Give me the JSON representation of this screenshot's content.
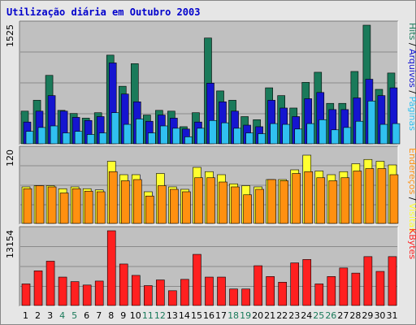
{
  "chart_data": {
    "title": "Utilização diária em Outubro 2003",
    "days": [
      "1",
      "2",
      "3",
      "4",
      "5",
      "6",
      "7",
      "8",
      "9",
      "10",
      "11",
      "12",
      "13",
      "14",
      "15",
      "16",
      "17",
      "18",
      "19",
      "20",
      "21",
      "22",
      "23",
      "24",
      "25",
      "26",
      "27",
      "28",
      "29",
      "30",
      "31"
    ],
    "weekend_days": [
      "4",
      "5",
      "11",
      "12",
      "18",
      "19",
      "25",
      "26"
    ],
    "colors": {
      "hits": "#1a7a5a",
      "files": "#1515d0",
      "pages": "#30c0f0",
      "visits": "#ffff30",
      "hosts": "#ff9010",
      "kbytes": "#ff2020",
      "weekday_label": "#000000",
      "weekend_label": "#1a7a5a",
      "panel_bg": "#c0c0c0"
    },
    "panels": [
      {
        "type": "bar",
        "ymax": 1525,
        "ymax_label": "1525",
        "legend": [
          {
            "text": "Hits",
            "color": "#1a7a5a"
          },
          {
            "text": " / ",
            "color": "#000000"
          },
          {
            "text": "Arquivos",
            "color": "#1515d0"
          },
          {
            "text": " / ",
            "color": "#000000"
          },
          {
            "text": "Páginas",
            "color": "#30c0f0"
          }
        ],
        "series": [
          {
            "name": "Hits",
            "color": "#1a7a5a",
            "values": [
              420,
              560,
              880,
              430,
              390,
              330,
              400,
              1140,
              740,
              1030,
              370,
              430,
              420,
              220,
              400,
              1360,
              680,
              560,
              350,
              310,
              720,
              620,
              460,
              790,
              920,
              520,
              520,
              930,
              1525,
              700,
              910
            ]
          },
          {
            "name": "Arquivos",
            "color": "#1515d0",
            "values": [
              280,
              420,
              620,
              420,
              340,
              300,
              350,
              1040,
              640,
              540,
              290,
              370,
              330,
              190,
              280,
              780,
              540,
              420,
              240,
              220,
              560,
              460,
              350,
              580,
              660,
              440,
              440,
              590,
              830,
              620,
              720
            ]
          },
          {
            "name": "Páginas",
            "color": "#30c0f0",
            "values": [
              160,
              210,
              230,
              140,
              160,
              120,
              140,
              400,
              250,
              320,
              140,
              230,
              200,
              90,
              200,
              300,
              270,
              200,
              140,
              130,
              260,
              250,
              190,
              260,
              310,
              180,
              210,
              290,
              550,
              250,
              260
            ]
          }
        ]
      },
      {
        "type": "bar",
        "ymax": 120,
        "ymax_label": "120",
        "legend": [
          {
            "text": "Endereços",
            "color": "#ff9010"
          },
          {
            "text": " / ",
            "color": "#000000"
          },
          {
            "text": "Visitas",
            "color": "#ffff30"
          }
        ],
        "series": [
          {
            "name": "Visitas",
            "color": "#ffff30",
            "values": [
              60,
              62,
              62,
              57,
              60,
              57,
              55,
              102,
              80,
              80,
              52,
              82,
              60,
              56,
              92,
              85,
              80,
              65,
              62,
              60,
              72,
              72,
              88,
              112,
              86,
              80,
              85,
              98,
              105,
              102,
              96
            ]
          },
          {
            "name": "Endereços",
            "color": "#ff9010",
            "values": [
              57,
              62,
              60,
              50,
              57,
              53,
              52,
              85,
              70,
              72,
              45,
              62,
              56,
              52,
              75,
              75,
              68,
              60,
              47,
              56,
              72,
              70,
              82,
              85,
              75,
              70,
              75,
              86,
              90,
              90,
              80
            ]
          }
        ]
      },
      {
        "type": "bar",
        "ymax": 13154,
        "ymax_label": "13154",
        "legend": [
          {
            "text": "KBytes",
            "color": "#ff2020"
          }
        ],
        "series": [
          {
            "name": "KBytes",
            "color": "#ff2020",
            "values": [
              3800,
              6100,
              7800,
              5000,
              4200,
              3600,
              4300,
              13154,
              7300,
              5300,
              3500,
              4500,
              2600,
              4600,
              9000,
              5000,
              5000,
              2900,
              2900,
              7000,
              5100,
              4100,
              7500,
              8100,
              3800,
              5100,
              6600,
              5700,
              8600,
              6000,
              8600
            ]
          }
        ]
      }
    ]
  }
}
